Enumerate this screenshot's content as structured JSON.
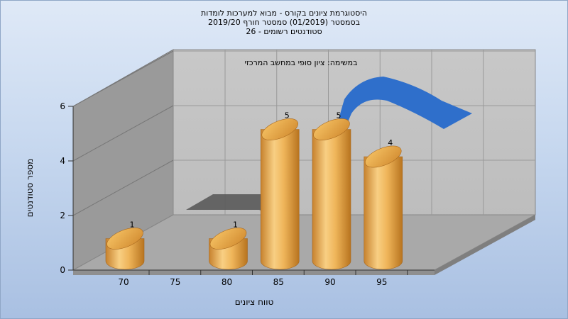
{
  "chart_data": {
    "type": "bar",
    "title_lines": [
      "היסטוגרמת ציונים בקורס - מבוא למערכות לומדות",
      "בסמסטר  (01/2019)  סמסטר חורף 2019/20",
      "סטודנטים רשומים - 26"
    ],
    "subtitle": "במשימה: ציון סופי במחשב המרכזי",
    "xlabel": "טווח ציונים",
    "ylabel": "מספר סטודנטים",
    "x_ticks": [
      "70",
      "75",
      "80",
      "85",
      "90",
      "95"
    ],
    "y_ticks": [
      "0",
      "2",
      "4",
      "6"
    ],
    "ylim": [
      0,
      6
    ],
    "bars": [
      {
        "x": 70,
        "value": 1,
        "label": "1"
      },
      {
        "x": 80,
        "value": 1,
        "label": "1"
      },
      {
        "x": 85,
        "value": 5,
        "label": "5"
      },
      {
        "x": 90,
        "value": 5,
        "label": "5"
      },
      {
        "x": 95,
        "value": 4,
        "label": "4"
      }
    ],
    "grid": true,
    "colors": {
      "bar": "#f0b050",
      "curve": "#2f6fcb",
      "shadow": "#555555"
    }
  }
}
